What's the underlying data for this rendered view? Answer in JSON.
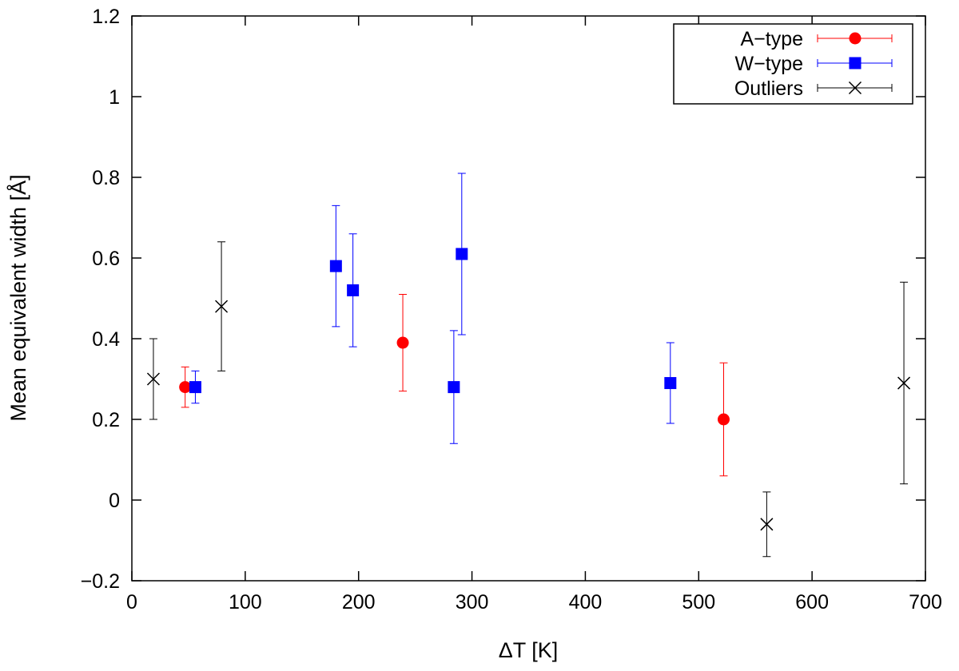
{
  "chart_data": {
    "type": "scatter",
    "title": "",
    "xlabel": "ΔT [K]",
    "ylabel": "Mean equivalent width [Å]",
    "xlim": [
      0,
      700
    ],
    "ylim": [
      -0.2,
      1.2
    ],
    "xticks": [
      0,
      100,
      200,
      300,
      400,
      500,
      600,
      700
    ],
    "yticks": [
      -0.2,
      0,
      0.2,
      0.4,
      0.6,
      0.8,
      1,
      1.2
    ],
    "xtick_labels": [
      "0",
      "100",
      "200",
      "300",
      "400",
      "500",
      "600",
      "700"
    ],
    "ytick_labels": [
      "−0.2",
      "0",
      "0.2",
      "0.4",
      "0.6",
      "0.8",
      "1",
      "1.2"
    ],
    "grid": false,
    "legend_position": "top-right",
    "series": [
      {
        "name": "A−type",
        "marker": "circle",
        "color": "#ff0000",
        "points": [
          {
            "x": 47,
            "y": 0.28,
            "ylow": 0.23,
            "yhigh": 0.33
          },
          {
            "x": 239,
            "y": 0.39,
            "ylow": 0.27,
            "yhigh": 0.51
          },
          {
            "x": 522,
            "y": 0.2,
            "ylow": 0.06,
            "yhigh": 0.34
          }
        ]
      },
      {
        "name": "W−type",
        "marker": "square",
        "color": "#0000ff",
        "points": [
          {
            "x": 56,
            "y": 0.28,
            "ylow": 0.24,
            "yhigh": 0.32
          },
          {
            "x": 180,
            "y": 0.58,
            "ylow": 0.43,
            "yhigh": 0.73
          },
          {
            "x": 195,
            "y": 0.52,
            "ylow": 0.38,
            "yhigh": 0.66
          },
          {
            "x": 284,
            "y": 0.28,
            "ylow": 0.14,
            "yhigh": 0.42
          },
          {
            "x": 291,
            "y": 0.61,
            "ylow": 0.41,
            "yhigh": 0.81
          },
          {
            "x": 475,
            "y": 0.29,
            "ylow": 0.19,
            "yhigh": 0.39
          }
        ]
      },
      {
        "name": "Outliers",
        "marker": "x",
        "color": "#000000",
        "points": [
          {
            "x": 19,
            "y": 0.3,
            "ylow": 0.2,
            "yhigh": 0.4
          },
          {
            "x": 79,
            "y": 0.48,
            "ylow": 0.32,
            "yhigh": 0.64
          },
          {
            "x": 560,
            "y": -0.06,
            "ylow": -0.14,
            "yhigh": 0.02
          },
          {
            "x": 681,
            "y": 0.29,
            "ylow": 0.04,
            "yhigh": 0.54
          }
        ]
      }
    ]
  }
}
